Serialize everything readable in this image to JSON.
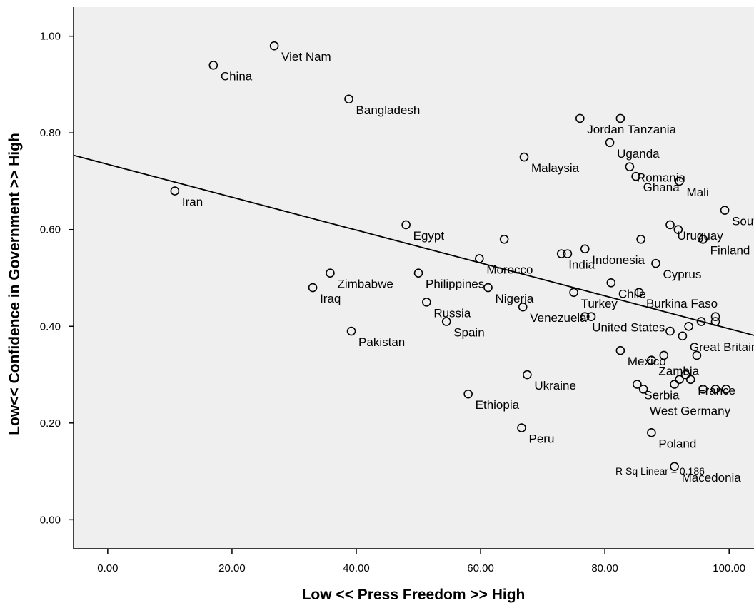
{
  "chart_data": {
    "type": "scatter",
    "title": "",
    "xlabel": "Low << Press Freedom  >> High",
    "ylabel": "Low<< Confidence in Government >> High",
    "xlim": [
      -5.5,
      104
    ],
    "ylim": [
      -0.06,
      1.06
    ],
    "x_ticks": [
      "0.00",
      "20.00",
      "40.00",
      "60.00",
      "80.00",
      "100.00"
    ],
    "y_ticks": [
      "0.00",
      "0.20",
      "0.40",
      "0.60",
      "0.80",
      "1.00"
    ],
    "grid": false,
    "background": "#efefef",
    "fit_line": {
      "label": "R Sq Linear = 0.186",
      "intercept": 0.735,
      "slope": -0.0034
    },
    "points": [
      {
        "x": 17.0,
        "y": 0.94,
        "label": "China"
      },
      {
        "x": 26.8,
        "y": 0.98,
        "label": "Viet Nam"
      },
      {
        "x": 38.8,
        "y": 0.87,
        "label": "Bangladesh"
      },
      {
        "x": 10.8,
        "y": 0.68,
        "label": "Iran"
      },
      {
        "x": 76.0,
        "y": 0.83,
        "label": "Jordan"
      },
      {
        "x": 82.5,
        "y": 0.83,
        "label": "Tanzania"
      },
      {
        "x": 80.8,
        "y": 0.78,
        "label": "Uganda"
      },
      {
        "x": 67.0,
        "y": 0.75,
        "label": "Malaysia"
      },
      {
        "x": 84.0,
        "y": 0.73,
        "label": "Romania"
      },
      {
        "x": 85.0,
        "y": 0.71,
        "label": "Ghana"
      },
      {
        "x": 92.0,
        "y": 0.7,
        "label": "Mali"
      },
      {
        "x": 99.3,
        "y": 0.64,
        "label": "South Africa"
      },
      {
        "x": 48.0,
        "y": 0.61,
        "label": "Egypt"
      },
      {
        "x": 63.8,
        "y": 0.58,
        "label": ""
      },
      {
        "x": 90.5,
        "y": 0.61,
        "label": "Uruguay"
      },
      {
        "x": 91.8,
        "y": 0.6,
        "label": ""
      },
      {
        "x": 95.8,
        "y": 0.58,
        "label": "Finland"
      },
      {
        "x": 85.8,
        "y": 0.58,
        "label": ""
      },
      {
        "x": 59.8,
        "y": 0.54,
        "label": "Morocco"
      },
      {
        "x": 73.0,
        "y": 0.55,
        "label": "India"
      },
      {
        "x": 74.0,
        "y": 0.55,
        "label": ""
      },
      {
        "x": 76.8,
        "y": 0.56,
        "label": "Indonesia"
      },
      {
        "x": 88.2,
        "y": 0.53,
        "label": "Cyprus"
      },
      {
        "x": 50.0,
        "y": 0.51,
        "label": "Philippines"
      },
      {
        "x": 35.8,
        "y": 0.51,
        "label": "Zimbabwe"
      },
      {
        "x": 33.0,
        "y": 0.48,
        "label": "Iraq"
      },
      {
        "x": 61.2,
        "y": 0.48,
        "label": "Nigeria"
      },
      {
        "x": 81.0,
        "y": 0.49,
        "label": "Chile"
      },
      {
        "x": 75.0,
        "y": 0.47,
        "label": "Turkey"
      },
      {
        "x": 85.5,
        "y": 0.47,
        "label": "Burkina Faso"
      },
      {
        "x": 51.3,
        "y": 0.45,
        "label": "Russia"
      },
      {
        "x": 66.8,
        "y": 0.44,
        "label": "Venezuela"
      },
      {
        "x": 76.8,
        "y": 0.42,
        "label": "United States"
      },
      {
        "x": 77.8,
        "y": 0.42,
        "label": ""
      },
      {
        "x": 54.5,
        "y": 0.41,
        "label": "Spain"
      },
      {
        "x": 39.2,
        "y": 0.39,
        "label": "Pakistan"
      },
      {
        "x": 93.5,
        "y": 0.4,
        "label": ""
      },
      {
        "x": 95.5,
        "y": 0.41,
        "label": ""
      },
      {
        "x": 97.8,
        "y": 0.42,
        "label": ""
      },
      {
        "x": 97.8,
        "y": 0.41,
        "label": ""
      },
      {
        "x": 90.5,
        "y": 0.39,
        "label": ""
      },
      {
        "x": 92.5,
        "y": 0.38,
        "label": "Great Britain"
      },
      {
        "x": 82.5,
        "y": 0.35,
        "label": "Mexico"
      },
      {
        "x": 89.5,
        "y": 0.34,
        "label": ""
      },
      {
        "x": 94.8,
        "y": 0.34,
        "label": ""
      },
      {
        "x": 87.5,
        "y": 0.33,
        "label": "Zambia"
      },
      {
        "x": 67.5,
        "y": 0.3,
        "label": "Ukraine"
      },
      {
        "x": 93.8,
        "y": 0.29,
        "label": "France"
      },
      {
        "x": 93.0,
        "y": 0.3,
        "label": ""
      },
      {
        "x": 92.0,
        "y": 0.29,
        "label": ""
      },
      {
        "x": 85.2,
        "y": 0.28,
        "label": "Serbia"
      },
      {
        "x": 86.2,
        "y": 0.27,
        "label": ""
      },
      {
        "x": 91.2,
        "y": 0.28,
        "label": ""
      },
      {
        "x": 95.8,
        "y": 0.27,
        "label": ""
      },
      {
        "x": 97.8,
        "y": 0.27,
        "label": ""
      },
      {
        "x": 99.5,
        "y": 0.27,
        "label": ""
      },
      {
        "x": 58.0,
        "y": 0.26,
        "label": "Ethiopia"
      },
      {
        "x": 66.6,
        "y": 0.19,
        "label": "Peru"
      },
      {
        "x": 87.5,
        "y": 0.18,
        "label": "Poland"
      },
      {
        "x": 91.2,
        "y": 0.11,
        "label": "Macedonia"
      }
    ],
    "annotations": [
      {
        "text": "West Germany",
        "x": 87.0,
        "y": 0.22
      }
    ]
  }
}
